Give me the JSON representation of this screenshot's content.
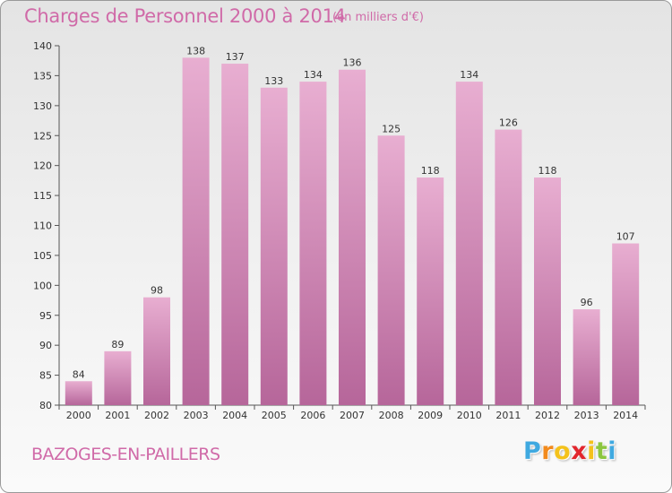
{
  "header": {
    "title": "Charges de Personnel 2000 à 2014",
    "subtitle": "(en milliers d'€)"
  },
  "footer": {
    "commune": "BAZOGES-EN-PAILLERS",
    "logo_letters": [
      "P",
      "r",
      "o",
      "x",
      "i",
      "t",
      "i"
    ],
    "logo_colors": [
      "#3fa9e0",
      "#f28a1c",
      "#f4c21b",
      "#e2262d",
      "#f4c21b",
      "#8cc63f",
      "#3fa9e0"
    ]
  },
  "colors": {
    "bar_light": "#e8aed1",
    "bar_dark": "#b6669a",
    "title": "#d06aa8",
    "axis": "#555555"
  },
  "chart_data": {
    "type": "bar",
    "title": "Charges de Personnel 2000 à 2014",
    "subtitle": "(en milliers d'€)",
    "xlabel": "",
    "ylabel": "",
    "categories": [
      "2000",
      "2001",
      "2002",
      "2003",
      "2004",
      "2005",
      "2006",
      "2007",
      "2008",
      "2009",
      "2010",
      "2011",
      "2012",
      "2013",
      "2014"
    ],
    "values": [
      84,
      89,
      98,
      138,
      137,
      133,
      134,
      136,
      125,
      118,
      134,
      126,
      118,
      96,
      107
    ],
    "ylim": [
      80,
      140
    ],
    "yticks": [
      80,
      85,
      90,
      95,
      100,
      105,
      110,
      115,
      120,
      125,
      130,
      135,
      140
    ],
    "grid": false,
    "legend": "none"
  }
}
